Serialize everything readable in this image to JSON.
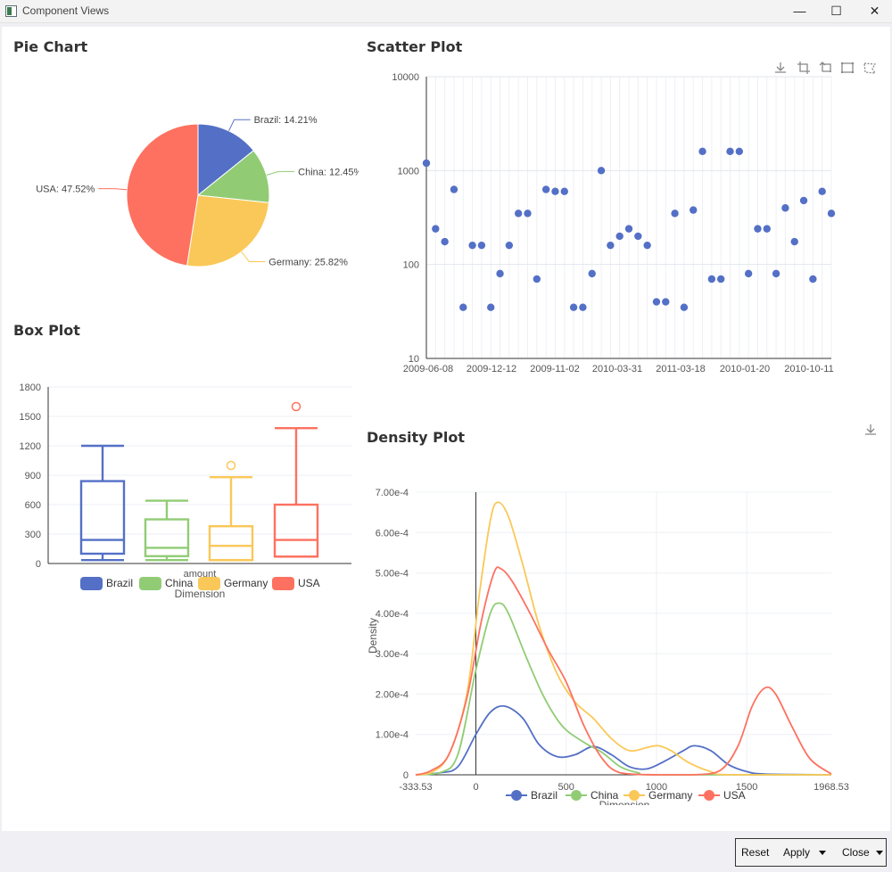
{
  "window": {
    "title": "Component Views"
  },
  "pie": {
    "title": "Pie Chart",
    "slices": [
      {
        "label": "Brazil: 14.21%",
        "name": "Brazil",
        "value": 14.21,
        "color": "#5470c6"
      },
      {
        "label": "China: 12.45%",
        "name": "China",
        "value": 12.45,
        "color": "#91cc75"
      },
      {
        "label": "Germany: 25.82%",
        "name": "Germany",
        "value": 25.82,
        "color": "#fac858"
      },
      {
        "label": "USA: 47.52%",
        "name": "USA",
        "value": 47.52,
        "color": "#fe7160"
      }
    ]
  },
  "box": {
    "title": "Box Plot",
    "y_ticks": [
      "1800",
      "1500",
      "1200",
      "900",
      "600",
      "300",
      "0"
    ],
    "ylim": [
      0,
      1800
    ],
    "category": "amount",
    "xlabel": "Dimension",
    "series": [
      {
        "name": "Brazil",
        "color": "#5470c6",
        "min": 35,
        "q1": 100,
        "median": 240,
        "q3": 840,
        "max": 1200,
        "outliers": []
      },
      {
        "name": "China",
        "color": "#91cc75",
        "min": 35,
        "q1": 75,
        "median": 160,
        "q3": 450,
        "max": 640,
        "outliers": []
      },
      {
        "name": "Germany",
        "color": "#fac858",
        "min": 35,
        "q1": 35,
        "median": 180,
        "q3": 380,
        "max": 880,
        "outliers": [
          1000
        ]
      },
      {
        "name": "USA",
        "color": "#fe7160",
        "min": 70,
        "q1": 70,
        "median": 240,
        "q3": 600,
        "max": 1380,
        "outliers": [
          1600
        ]
      }
    ]
  },
  "scatter": {
    "title": "Scatter Plot",
    "y_ticks": [
      "10000",
      "1000",
      "100",
      "10"
    ],
    "ylim": [
      10,
      10000
    ],
    "yscale": "log",
    "x_ticks": [
      "2009-06-08",
      "2009-12-12",
      "2009-11-02",
      "2010-03-31",
      "2011-03-18",
      "2010-01-20",
      "2010-10-11"
    ],
    "values": [
      1200,
      240,
      175,
      630,
      35,
      160,
      160,
      35,
      80,
      160,
      350,
      350,
      70,
      630,
      600,
      600,
      35,
      35,
      80,
      1000,
      160,
      200,
      240,
      200,
      160,
      40,
      40,
      350,
      35,
      380,
      1600,
      70,
      70,
      1600,
      1600,
      80,
      240,
      240,
      80,
      400,
      175,
      480,
      70,
      600,
      350
    ],
    "color": "#5470c6"
  },
  "density": {
    "title": "Density Plot",
    "y_ticks": [
      "7.00e-4",
      "6.00e-4",
      "5.00e-4",
      "4.00e-4",
      "3.00e-4",
      "2.00e-4",
      "1.00e-4",
      "0"
    ],
    "ylim": [
      0,
      0.0007
    ],
    "ylabel": "Density",
    "x_ticks": [
      "-333.53",
      "0",
      "500",
      "1000",
      "1500",
      "1968.53"
    ],
    "xlim": [
      -333.53,
      1968.53
    ],
    "xlabel": "Dimension",
    "series": [
      {
        "name": "Brazil",
        "color": "#5470c6",
        "points": [
          [
            -333.53,
            0
          ],
          [
            -200,
            5e-06
          ],
          [
            -100,
            2e-05
          ],
          [
            0,
            0.0001
          ],
          [
            80,
            0.000155
          ],
          [
            160,
            0.00017
          ],
          [
            260,
            0.00014
          ],
          [
            350,
            7.5e-05
          ],
          [
            450,
            4.5e-05
          ],
          [
            550,
            5e-05
          ],
          [
            650,
            7e-05
          ],
          [
            750,
            5e-05
          ],
          [
            850,
            2e-05
          ],
          [
            950,
            1.5e-05
          ],
          [
            1050,
            3.5e-05
          ],
          [
            1150,
            6e-05
          ],
          [
            1210,
            7.2e-05
          ],
          [
            1300,
            6e-05
          ],
          [
            1400,
            2.5e-05
          ],
          [
            1500,
            8e-06
          ],
          [
            1600,
            2e-06
          ],
          [
            1968.53,
            0
          ]
        ]
      },
      {
        "name": "China",
        "color": "#91cc75",
        "points": [
          [
            -333.53,
            0
          ],
          [
            -200,
            5e-06
          ],
          [
            -100,
            5e-05
          ],
          [
            0,
            0.00026
          ],
          [
            80,
            0.0004
          ],
          [
            130,
            0.000425
          ],
          [
            180,
            0.0004
          ],
          [
            280,
            0.00029
          ],
          [
            380,
            0.00019
          ],
          [
            480,
            0.00012
          ],
          [
            600,
            8e-05
          ],
          [
            700,
            5.5e-05
          ],
          [
            800,
            2e-05
          ],
          [
            900,
            5e-06
          ],
          [
            1000,
            0
          ],
          [
            1968.53,
            0
          ]
        ]
      },
      {
        "name": "Germany",
        "color": "#fac858",
        "points": [
          [
            -333.53,
            0
          ],
          [
            -250,
            5e-06
          ],
          [
            -150,
            5e-05
          ],
          [
            -50,
            0.0002
          ],
          [
            20,
            0.00045
          ],
          [
            80,
            0.00063
          ],
          [
            120,
            0.000675
          ],
          [
            180,
            0.00064
          ],
          [
            260,
            0.00052
          ],
          [
            350,
            0.00037
          ],
          [
            450,
            0.00025
          ],
          [
            550,
            0.00018
          ],
          [
            650,
            0.00014
          ],
          [
            750,
            9e-05
          ],
          [
            850,
            6e-05
          ],
          [
            950,
            6.8e-05
          ],
          [
            1010,
            7.2e-05
          ],
          [
            1080,
            6e-05
          ],
          [
            1180,
            3e-05
          ],
          [
            1300,
            8e-06
          ],
          [
            1400,
            0
          ],
          [
            1968.53,
            0
          ]
        ]
      },
      {
        "name": "USA",
        "color": "#fe7160",
        "points": [
          [
            -333.53,
            0
          ],
          [
            -250,
            1e-05
          ],
          [
            -150,
            5e-05
          ],
          [
            -50,
            0.00019
          ],
          [
            30,
            0.00038
          ],
          [
            100,
            0.0005
          ],
          [
            140,
            0.00051
          ],
          [
            200,
            0.00048
          ],
          [
            300,
            0.0004
          ],
          [
            400,
            0.00031
          ],
          [
            500,
            0.00023
          ],
          [
            600,
            0.00012
          ],
          [
            700,
            4e-05
          ],
          [
            800,
            5e-06
          ],
          [
            1000,
            0
          ],
          [
            1200,
            0
          ],
          [
            1350,
            1e-05
          ],
          [
            1450,
            7e-05
          ],
          [
            1530,
            0.00017
          ],
          [
            1600,
            0.000215
          ],
          [
            1660,
            0.0002
          ],
          [
            1750,
            0.00012
          ],
          [
            1850,
            4e-05
          ],
          [
            1968.53,
            2e-06
          ]
        ]
      }
    ]
  },
  "toolbar": {
    "scatter_tools": [
      "download-icon",
      "crop-icon",
      "rotate-crop-icon",
      "rect-select-icon",
      "lasso-icon"
    ],
    "density_tools": [
      "download-icon"
    ]
  },
  "footer": {
    "reset": "Reset",
    "apply": "Apply",
    "close": "Close"
  },
  "chart_data": [
    {
      "type": "pie",
      "title": "Pie Chart",
      "categories": [
        "Brazil",
        "China",
        "Germany",
        "USA"
      ],
      "values": [
        14.21,
        12.45,
        25.82,
        47.52
      ]
    },
    {
      "type": "box",
      "title": "Box Plot",
      "xlabel": "Dimension",
      "categories": [
        "amount"
      ],
      "ylim": [
        0,
        1800
      ],
      "series": [
        {
          "name": "Brazil",
          "min": 35,
          "q1": 100,
          "median": 240,
          "q3": 840,
          "max": 1200
        },
        {
          "name": "China",
          "min": 35,
          "q1": 75,
          "median": 160,
          "q3": 450,
          "max": 640
        },
        {
          "name": "Germany",
          "min": 35,
          "q1": 35,
          "median": 180,
          "q3": 380,
          "max": 880,
          "outliers": [
            1000
          ]
        },
        {
          "name": "USA",
          "min": 70,
          "q1": 70,
          "median": 240,
          "q3": 600,
          "max": 1380,
          "outliers": [
            1600
          ]
        }
      ]
    },
    {
      "type": "scatter",
      "title": "Scatter Plot",
      "ylim": [
        10,
        10000
      ],
      "yscale": "log",
      "x_ticks": [
        "2009-06-08",
        "2009-12-12",
        "2009-11-02",
        "2010-03-31",
        "2011-03-18",
        "2010-01-20",
        "2010-10-11"
      ]
    },
    {
      "type": "line",
      "title": "Density Plot",
      "xlabel": "Dimension",
      "ylabel": "Density",
      "xlim": [
        -333.53,
        1968.53
      ],
      "ylim": [
        0,
        0.0007
      ],
      "series": [
        "Brazil",
        "China",
        "Germany",
        "USA"
      ]
    }
  ]
}
